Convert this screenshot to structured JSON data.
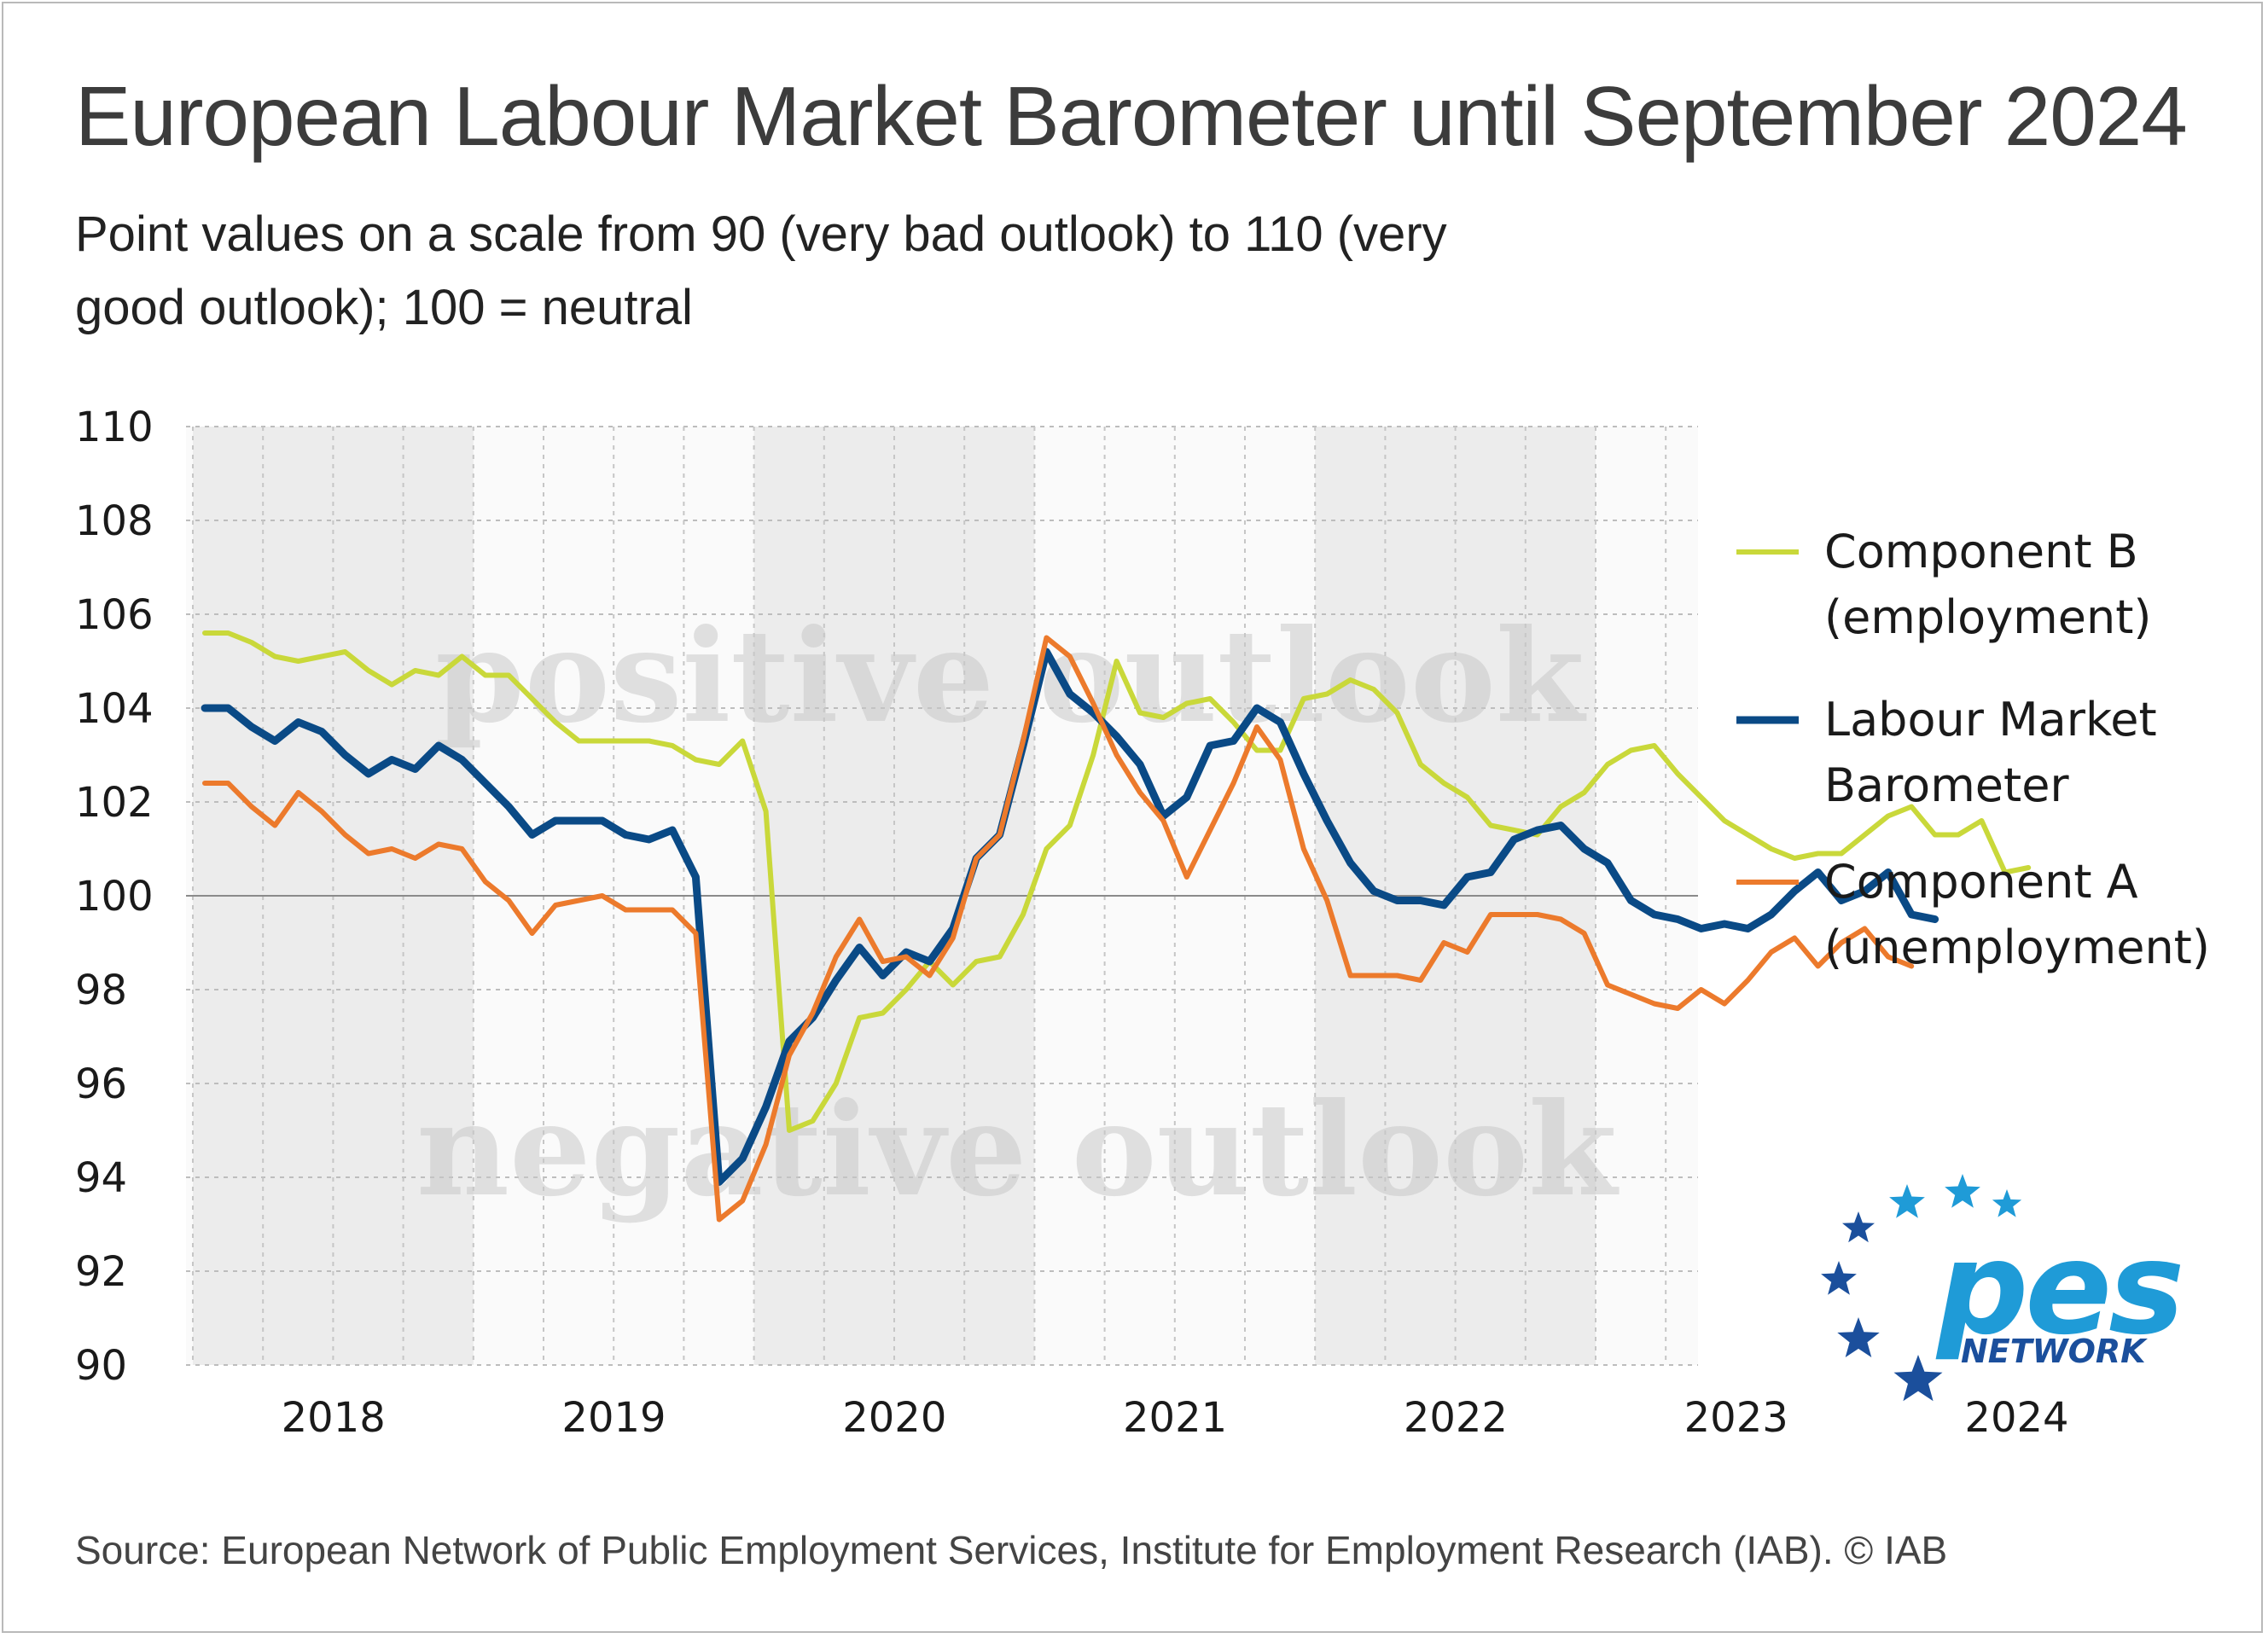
{
  "title": "European Labour Market Barometer until September 2024",
  "subtitle": "Point values on a scale from 90 (very bad outlook) to 110 (very good outlook); 100 = neutral",
  "source": "Source: European Network of Public Employment Services, Institute for Employment Research (IAB). © IAB",
  "logo": {
    "word": "pes",
    "sub": "NETWORK"
  },
  "colors": {
    "component_b": "#c9d83a",
    "barometer": "#0a4a86",
    "component_a": "#ec7a2c",
    "logo_blue": "#1b4f9c",
    "logo_cyan": "#1f9bd7"
  },
  "chart_data": {
    "type": "line",
    "x_unit": "month index (0 = January 2018, one step per month)",
    "x_tick_labels": [
      "2018",
      "2019",
      "2020",
      "2021",
      "2022",
      "2023",
      "2024"
    ],
    "ylim": [
      90,
      110
    ],
    "yticks": [
      90,
      92,
      94,
      96,
      98,
      100,
      102,
      104,
      106,
      108,
      110
    ],
    "reference_line": 100,
    "grid": true,
    "annotations": [
      "positive outlook",
      "negative outlook"
    ],
    "legend_position": "right",
    "series": [
      {
        "name": "Component B (employment)",
        "legend_lines": [
          "Component B",
          "(employment)"
        ],
        "color": "#c9d83a",
        "points": [
          [
            0,
            105.6
          ],
          [
            1,
            105.6
          ],
          [
            2,
            105.4
          ],
          [
            3,
            105.1
          ],
          [
            4,
            105
          ],
          [
            5,
            105.1
          ],
          [
            6,
            105.2
          ],
          [
            7,
            104.8
          ],
          [
            8,
            104.5
          ],
          [
            9,
            104.8
          ],
          [
            10,
            104.7
          ],
          [
            11,
            105.1
          ],
          [
            12,
            104.7
          ],
          [
            13,
            104.7
          ],
          [
            14,
            104.2
          ],
          [
            15,
            103.7
          ],
          [
            16,
            103.3
          ],
          [
            17,
            103.3
          ],
          [
            18,
            103.3
          ],
          [
            19,
            103.3
          ],
          [
            20,
            103.2
          ],
          [
            21,
            102.9
          ],
          [
            22,
            102.8
          ],
          [
            23,
            103.3
          ],
          [
            24,
            101.8
          ],
          [
            25,
            95
          ],
          [
            26,
            95.2
          ],
          [
            27,
            96
          ],
          [
            28,
            97.4
          ],
          [
            29,
            97.5
          ],
          [
            30,
            98
          ],
          [
            31,
            98.6
          ],
          [
            32,
            98.1
          ],
          [
            33,
            98.6
          ],
          [
            34,
            98.7
          ],
          [
            35,
            99.6
          ],
          [
            36,
            101
          ],
          [
            37,
            101.5
          ],
          [
            38,
            103
          ],
          [
            39,
            105
          ],
          [
            40,
            103.9
          ],
          [
            41,
            103.8
          ],
          [
            42,
            104.1
          ],
          [
            43,
            104.2
          ],
          [
            44,
            103.7
          ],
          [
            45,
            103.1
          ],
          [
            46,
            103.1
          ],
          [
            47,
            104.2
          ],
          [
            48,
            104.3
          ],
          [
            49,
            104.6
          ],
          [
            50,
            104.4
          ],
          [
            51,
            103.9
          ],
          [
            52,
            102.8
          ],
          [
            53,
            102.4
          ],
          [
            54,
            102.1
          ],
          [
            55,
            101.5
          ],
          [
            56,
            101.4
          ],
          [
            57,
            101.3
          ],
          [
            58,
            101.9
          ],
          [
            59,
            102.2
          ],
          [
            60,
            102.8
          ],
          [
            61,
            103.1
          ],
          [
            62,
            103.2
          ],
          [
            63,
            102.6
          ],
          [
            64,
            102.1
          ],
          [
            65,
            101.6
          ],
          [
            66,
            101.3
          ],
          [
            67,
            101
          ],
          [
            68,
            100.8
          ],
          [
            69,
            100.9
          ],
          [
            70,
            100.9
          ],
          [
            71,
            101.3
          ],
          [
            72,
            101.7
          ],
          [
            73,
            101.9
          ],
          [
            74,
            101.3
          ],
          [
            75,
            101.3
          ],
          [
            76,
            101.6
          ],
          [
            77,
            100.5
          ],
          [
            78,
            100.6
          ]
        ]
      },
      {
        "name": "Labour Market Barometer",
        "legend_lines": [
          "Labour Market",
          "Barometer"
        ],
        "color": "#0a4a86",
        "points": [
          [
            0,
            104
          ],
          [
            1,
            104
          ],
          [
            2,
            103.6
          ],
          [
            3,
            103.3
          ],
          [
            4,
            103.7
          ],
          [
            5,
            103.5
          ],
          [
            6,
            103
          ],
          [
            7,
            102.6
          ],
          [
            8,
            102.9
          ],
          [
            9,
            102.7
          ],
          [
            10,
            103.2
          ],
          [
            11,
            102.9
          ],
          [
            12,
            102.4
          ],
          [
            13,
            101.9
          ],
          [
            14,
            101.3
          ],
          [
            15,
            101.6
          ],
          [
            16,
            101.6
          ],
          [
            17,
            101.6
          ],
          [
            18,
            101.3
          ],
          [
            19,
            101.2
          ],
          [
            20,
            101.4
          ],
          [
            21,
            100.4
          ],
          [
            22,
            93.9
          ],
          [
            23,
            94.4
          ],
          [
            24,
            95.5
          ],
          [
            25,
            96.9
          ],
          [
            26,
            97.4
          ],
          [
            27,
            98.2
          ],
          [
            28,
            98.9
          ],
          [
            29,
            98.3
          ],
          [
            30,
            98.8
          ],
          [
            31,
            98.6
          ],
          [
            32,
            99.3
          ],
          [
            33,
            100.8
          ],
          [
            34,
            101.3
          ],
          [
            35,
            103.2
          ],
          [
            36,
            105.2
          ],
          [
            37,
            104.3
          ],
          [
            38,
            103.9
          ],
          [
            39,
            103.4
          ],
          [
            40,
            102.8
          ],
          [
            41,
            101.7
          ],
          [
            42,
            102.1
          ],
          [
            43,
            103.2
          ],
          [
            44,
            103.3
          ],
          [
            45,
            104
          ],
          [
            46,
            103.7
          ],
          [
            47,
            102.6
          ],
          [
            48,
            101.6
          ],
          [
            49,
            100.7
          ],
          [
            50,
            100.1
          ],
          [
            51,
            99.9
          ],
          [
            52,
            99.9
          ],
          [
            53,
            99.8
          ],
          [
            54,
            100.4
          ],
          [
            55,
            100.5
          ],
          [
            56,
            101.2
          ],
          [
            57,
            101.4
          ],
          [
            58,
            101.5
          ],
          [
            59,
            101
          ],
          [
            60,
            100.7
          ],
          [
            61,
            99.9
          ],
          [
            62,
            99.6
          ],
          [
            63,
            99.5
          ],
          [
            64,
            99.3
          ],
          [
            65,
            99.4
          ],
          [
            66,
            99.3
          ],
          [
            67,
            99.6
          ],
          [
            68,
            100.1
          ],
          [
            69,
            100.5
          ],
          [
            70,
            99.9
          ],
          [
            71,
            100.1
          ],
          [
            72,
            100.5
          ],
          [
            73,
            99.6
          ],
          [
            74,
            99.5
          ]
        ]
      },
      {
        "name": "Component A (unemployment)",
        "legend_lines": [
          "Component A",
          "(unemployment)"
        ],
        "color": "#ec7a2c",
        "points": [
          [
            0,
            102.4
          ],
          [
            1,
            102.4
          ],
          [
            2,
            101.9
          ],
          [
            3,
            101.5
          ],
          [
            4,
            102.2
          ],
          [
            5,
            101.8
          ],
          [
            6,
            101.3
          ],
          [
            7,
            100.9
          ],
          [
            8,
            101
          ],
          [
            9,
            100.8
          ],
          [
            10,
            101.1
          ],
          [
            11,
            101
          ],
          [
            12,
            100.3
          ],
          [
            13,
            99.9
          ],
          [
            14,
            99.2
          ],
          [
            15,
            99.8
          ],
          [
            16,
            99.9
          ],
          [
            17,
            100
          ],
          [
            18,
            99.7
          ],
          [
            19,
            99.7
          ],
          [
            20,
            99.7
          ],
          [
            21,
            99.2
          ],
          [
            22,
            93.1
          ],
          [
            23,
            93.5
          ],
          [
            24,
            94.7
          ],
          [
            25,
            96.6
          ],
          [
            26,
            97.5
          ],
          [
            27,
            98.7
          ],
          [
            28,
            99.5
          ],
          [
            29,
            98.6
          ],
          [
            30,
            98.7
          ],
          [
            31,
            98.3
          ],
          [
            32,
            99.1
          ],
          [
            33,
            100.8
          ],
          [
            34,
            101.3
          ],
          [
            35,
            103.3
          ],
          [
            36,
            105.5
          ],
          [
            37,
            105.1
          ],
          [
            38,
            104.1
          ],
          [
            39,
            103
          ],
          [
            40,
            102.2
          ],
          [
            41,
            101.6
          ],
          [
            42,
            100.4
          ],
          [
            43,
            101.4
          ],
          [
            44,
            102.4
          ],
          [
            45,
            103.6
          ],
          [
            46,
            102.9
          ],
          [
            47,
            101
          ],
          [
            48,
            99.9
          ],
          [
            49,
            98.3
          ],
          [
            50,
            98.3
          ],
          [
            51,
            98.3
          ],
          [
            52,
            98.2
          ],
          [
            53,
            99
          ],
          [
            54,
            98.8
          ],
          [
            55,
            99.6
          ],
          [
            56,
            99.6
          ],
          [
            57,
            99.6
          ],
          [
            58,
            99.5
          ],
          [
            59,
            99.2
          ],
          [
            60,
            98.1
          ],
          [
            61,
            97.9
          ],
          [
            62,
            97.7
          ],
          [
            63,
            97.6
          ],
          [
            64,
            98
          ],
          [
            65,
            97.7
          ],
          [
            66,
            98.2
          ],
          [
            67,
            98.8
          ],
          [
            68,
            99.1
          ],
          [
            69,
            98.5
          ],
          [
            70,
            99
          ],
          [
            71,
            99.3
          ],
          [
            72,
            98.7
          ],
          [
            73,
            98.5
          ]
        ]
      }
    ]
  }
}
